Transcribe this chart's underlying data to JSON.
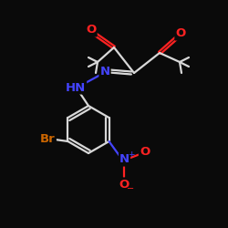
{
  "bg_color": "#0a0a0a",
  "bond_color": "#d8d8d8",
  "bond_width": 1.6,
  "atom_colors": {
    "O": "#ff2222",
    "N": "#4444ff",
    "Br": "#cc6600",
    "C": "#d8d8d8"
  }
}
